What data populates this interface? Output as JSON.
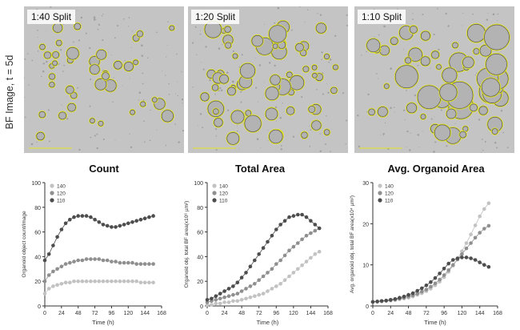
{
  "side_label": "BF Image, t = 5d",
  "image_panels": [
    {
      "label": "1:40 Split"
    },
    {
      "label": "1:20 Split"
    },
    {
      "label": "1:10 Split"
    }
  ],
  "colors": {
    "s140": "#c2c2c2",
    "s120": "#8f8f8f",
    "s110": "#4d4d4d",
    "image_bg": "#c4c4c4",
    "organoid_outline": "#e3e320"
  },
  "chart_data": [
    {
      "type": "line",
      "title": "Count",
      "xlabel": "Time (h)",
      "ylabel": "Organoid object count/image",
      "xlim": [
        0,
        168
      ],
      "ylim": [
        0,
        100
      ],
      "xticks": [
        "0",
        "24",
        "48",
        "72",
        "96",
        "120",
        "144",
        "168"
      ],
      "yticks": [
        "0",
        "20",
        "40",
        "60",
        "80",
        "100"
      ],
      "x": [
        0,
        6,
        12,
        18,
        24,
        30,
        36,
        42,
        48,
        54,
        60,
        66,
        72,
        78,
        84,
        90,
        96,
        102,
        108,
        114,
        120,
        126,
        132,
        138,
        144,
        150,
        156
      ],
      "series": [
        {
          "name": "140",
          "values": [
            10,
            14,
            16,
            17,
            18,
            19,
            19,
            20,
            20,
            20,
            20,
            20,
            20,
            20,
            20,
            20,
            20,
            20,
            20,
            20,
            20,
            20,
            20,
            19,
            19,
            19,
            19
          ]
        },
        {
          "name": "120",
          "values": [
            20,
            25,
            28,
            30,
            32,
            34,
            35,
            36,
            37,
            37,
            38,
            38,
            38,
            38,
            37,
            37,
            36,
            36,
            35,
            35,
            35,
            35,
            34,
            34,
            34,
            34,
            34
          ]
        },
        {
          "name": "110",
          "values": [
            37,
            42,
            49,
            56,
            62,
            67,
            70,
            72,
            73,
            73,
            73,
            72,
            70,
            68,
            66,
            65,
            64,
            64,
            65,
            66,
            67,
            68,
            69,
            70,
            71,
            72,
            73
          ]
        }
      ]
    },
    {
      "type": "line",
      "title": "Total Area",
      "xlabel": "Time (h)",
      "ylabel": "Organoid obj. total BF area(x10⁶ µm²)",
      "xlim": [
        0,
        168
      ],
      "ylim": [
        0,
        100
      ],
      "xticks": [
        "0",
        "24",
        "48",
        "72",
        "96",
        "120",
        "144",
        "168"
      ],
      "yticks": [
        "0",
        "20",
        "40",
        "60",
        "80",
        "100"
      ],
      "x": [
        0,
        6,
        12,
        18,
        24,
        30,
        36,
        42,
        48,
        54,
        60,
        66,
        72,
        78,
        84,
        90,
        96,
        102,
        108,
        114,
        120,
        126,
        132,
        138,
        144,
        150,
        156
      ],
      "series": [
        {
          "name": "140",
          "values": [
            1,
            1,
            2,
            2,
            3,
            3,
            4,
            4,
            5,
            6,
            7,
            8,
            9,
            10,
            12,
            14,
            16,
            18,
            21,
            24,
            27,
            30,
            33,
            36,
            39,
            42,
            44
          ]
        },
        {
          "name": "120",
          "values": [
            3,
            4,
            5,
            6,
            7,
            8,
            9,
            10,
            12,
            14,
            16,
            18,
            21,
            24,
            27,
            30,
            34,
            37,
            41,
            45,
            48,
            51,
            54,
            57,
            59,
            61,
            63
          ]
        },
        {
          "name": "110",
          "values": [
            5,
            6,
            8,
            10,
            12,
            14,
            16,
            19,
            23,
            27,
            32,
            37,
            42,
            47,
            52,
            57,
            62,
            66,
            69,
            72,
            73,
            74,
            74,
            72,
            69,
            66,
            63
          ]
        }
      ]
    },
    {
      "type": "line",
      "title": "Avg. Organoid Area",
      "xlabel": "Time (h)",
      "ylabel": "Avg. organoid obj. total BF area(x10⁴ µm²)",
      "xlim": [
        0,
        168
      ],
      "ylim": [
        0,
        30
      ],
      "xticks": [
        "0",
        "24",
        "48",
        "72",
        "96",
        "120",
        "144",
        "168"
      ],
      "yticks": [
        "0",
        "10",
        "20",
        "30"
      ],
      "x": [
        0,
        6,
        12,
        18,
        24,
        30,
        36,
        42,
        48,
        54,
        60,
        66,
        72,
        78,
        84,
        90,
        96,
        102,
        108,
        114,
        120,
        126,
        132,
        138,
        144,
        150,
        156
      ],
      "series": [
        {
          "name": "140",
          "values": [
            1,
            1,
            1.1,
            1.2,
            1.3,
            1.4,
            1.6,
            1.8,
            2,
            2.3,
            2.7,
            3.1,
            3.6,
            4.2,
            5,
            5.9,
            7,
            8.3,
            9.8,
            11.5,
            13.3,
            15.3,
            17.4,
            19.6,
            21.8,
            23.6,
            25
          ]
        },
        {
          "name": "120",
          "values": [
            1,
            1.1,
            1.2,
            1.3,
            1.4,
            1.6,
            1.8,
            2,
            2.3,
            2.6,
            3,
            3.5,
            4,
            4.7,
            5.5,
            6.4,
            7.5,
            8.7,
            10,
            11.3,
            12.6,
            14,
            15.3,
            16.6,
            17.8,
            18.8,
            19.5
          ]
        },
        {
          "name": "110",
          "values": [
            1,
            1.1,
            1.2,
            1.3,
            1.5,
            1.7,
            2,
            2.3,
            2.7,
            3.1,
            3.7,
            4.3,
            5,
            5.8,
            6.8,
            7.9,
            9.1,
            10.3,
            11.2,
            11.6,
            11.8,
            11.8,
            11.6,
            11.2,
            10.6,
            10,
            9.5
          ]
        }
      ]
    }
  ]
}
